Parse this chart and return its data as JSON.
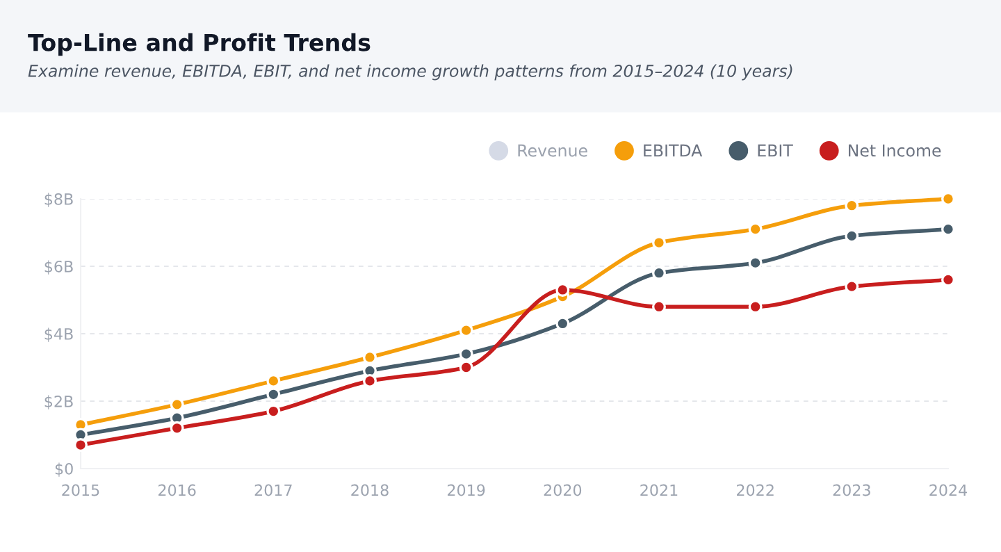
{
  "chart_data": {
    "type": "line",
    "title": "Top-Line and Profit Trends",
    "subtitle": "Examine revenue, EBITDA, EBIT, and net income growth patterns from 2015–2024 (10 years)",
    "x": [
      2015,
      2016,
      2017,
      2018,
      2019,
      2020,
      2021,
      2022,
      2023,
      2024
    ],
    "series": [
      {
        "name": "Revenue",
        "color": "#d5dae6",
        "values": [
          null,
          null,
          null,
          null,
          null,
          null,
          null,
          null,
          null,
          null
        ]
      },
      {
        "name": "EBITDA",
        "color": "#f59e0b",
        "values": [
          1.3,
          1.9,
          2.6,
          3.3,
          4.1,
          5.1,
          6.7,
          7.1,
          7.8,
          8.0
        ]
      },
      {
        "name": "EBIT",
        "color": "#475d6b",
        "values": [
          1.0,
          1.5,
          2.2,
          2.9,
          3.4,
          4.3,
          5.8,
          6.1,
          6.9,
          7.1
        ]
      },
      {
        "name": "Net Income",
        "color": "#c81e1e",
        "values": [
          0.7,
          1.2,
          1.7,
          2.6,
          3.0,
          5.3,
          4.8,
          4.8,
          5.4,
          5.6
        ]
      }
    ],
    "xlim": [
      2015,
      2024
    ],
    "xticks": [
      2015,
      2016,
      2017,
      2018,
      2019,
      2020,
      2021,
      2022,
      2023,
      2024
    ],
    "ylim": [
      0,
      8
    ],
    "yticks": [
      {
        "value": 0,
        "label": "$0"
      },
      {
        "value": 2,
        "label": "$2B"
      },
      {
        "value": 4,
        "label": "$4B"
      },
      {
        "value": 6,
        "label": "$6B"
      },
      {
        "value": 8,
        "label": "$8B"
      }
    ],
    "grid": "y",
    "legend": "top right",
    "marker": "circle",
    "line_style": "solid"
  }
}
